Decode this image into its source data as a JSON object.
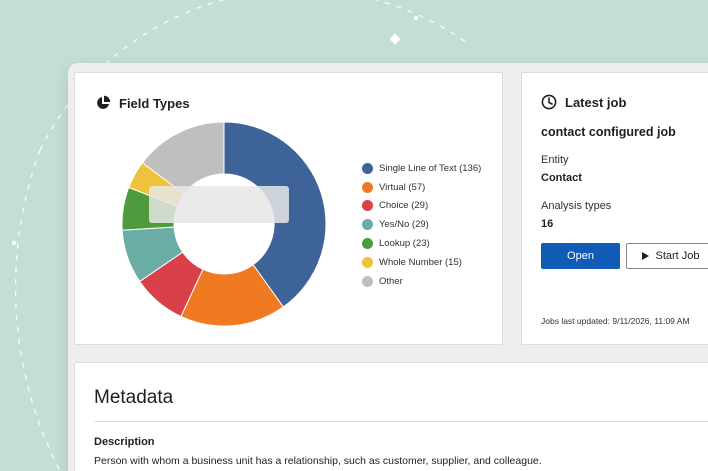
{
  "field_types": {
    "title": "Field Types",
    "icon": "pie-chart-icon",
    "chart_data": {
      "type": "pie",
      "categories": [
        "Single Line of Text",
        "Virtual",
        "Choice",
        "Yes/No",
        "Lookup",
        "Whole Number",
        "Other"
      ],
      "legend_labels": [
        "Single Line of Text (136)",
        "Virtual (57)",
        "Choice (29)",
        "Yes/No (29)",
        "Lookup (23)",
        "Whole Number (15)",
        "Other"
      ],
      "values": [
        136,
        57,
        29,
        29,
        23,
        15,
        50
      ],
      "colors": [
        "#3d6399",
        "#ef7a22",
        "#d9404a",
        "#6aada5",
        "#4e9b3e",
        "#eec33b",
        "#c0bfbe"
      ],
      "legend_position": "right"
    }
  },
  "latest_job": {
    "title": "Latest job",
    "icon": "clock-icon",
    "job_name": "contact configured job",
    "entity_label": "Entity",
    "entity_value": "Contact",
    "analysis_label": "Analysis types",
    "analysis_value": "16",
    "open_label": "Open",
    "start_label": "Start Job",
    "updated_text": "Jobs last updated: 9/11/2026, 11:09 AM"
  },
  "metadata": {
    "title": "Metadata",
    "description_label": "Description",
    "description_value": "Person with whom a business unit has a relationship, such as customer, supplier, and colleague."
  }
}
